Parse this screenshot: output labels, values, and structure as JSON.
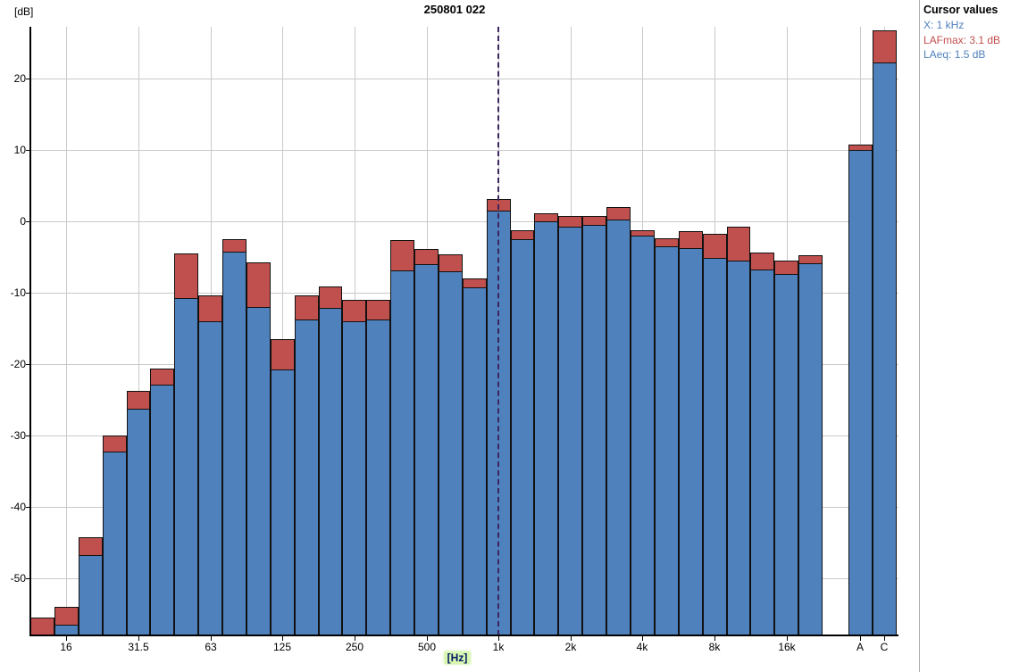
{
  "title": "250801 022",
  "colors": {
    "laeq_fill": "#4F81BD",
    "lafmax_fill": "#C0504D",
    "bar_border": "#111111",
    "gridline": "#C9C9C9",
    "axis": "#000000",
    "cursor_line": "#3B2660",
    "panel_blue": "#4F81BD",
    "panel_red": "#C0504D"
  },
  "y_axis": {
    "unit_label": "[dB]",
    "tick_values": [
      20,
      10,
      0,
      -10,
      -20,
      -30,
      -40,
      -50
    ],
    "min": -58,
    "max": 27.25
  },
  "x_axis": {
    "unit_label": "[Hz]",
    "labeled_ticks": [
      "16",
      "31.5",
      "63",
      "125",
      "250",
      "500",
      "1k",
      "2k",
      "4k",
      "8k",
      "16k"
    ],
    "broadband_labels": [
      "A",
      "C"
    ]
  },
  "chart_data": {
    "type": "bar",
    "title": "250801 022",
    "xlabel": "[Hz]",
    "ylabel": "[dB]",
    "ylim": [
      -58,
      27.25
    ],
    "grid": true,
    "categories": [
      "12.5",
      "16",
      "20",
      "25",
      "31.5",
      "40",
      "50",
      "63",
      "80",
      "100",
      "125",
      "160",
      "200",
      "250",
      "315",
      "400",
      "500",
      "630",
      "800",
      "1k",
      "1.25k",
      "1.6k",
      "2k",
      "2.5k",
      "3.15k",
      "4k",
      "5k",
      "6.3k",
      "8k",
      "10k",
      "12.5k",
      "16k",
      "20k"
    ],
    "labeled_tick_indices": [
      1,
      4,
      7,
      10,
      13,
      16,
      19,
      22,
      25,
      28,
      31
    ],
    "series": [
      {
        "name": "LAFmax",
        "color": "#C0504D",
        "values": [
          -55.5,
          -54.0,
          -44.2,
          -30.0,
          -23.8,
          -20.6,
          -4.5,
          -10.4,
          -2.5,
          -5.8,
          -16.5,
          -10.4,
          -9.1,
          -11.0,
          -11.0,
          -2.6,
          -3.9,
          -4.6,
          -8.0,
          3.1,
          -1.2,
          1.1,
          0.7,
          0.7,
          2.0,
          -1.2,
          -2.4,
          -1.4,
          -1.8,
          -0.8,
          -4.4,
          -5.5,
          -4.8
        ]
      },
      {
        "name": "LAeq",
        "color": "#4F81BD",
        "values": [
          -58.0,
          -56.5,
          -46.7,
          -32.3,
          -26.2,
          -22.9,
          -10.7,
          -14.0,
          -4.2,
          -12.0,
          -20.7,
          -13.8,
          -12.1,
          -14.0,
          -13.8,
          -6.9,
          -6.0,
          -7.0,
          -9.2,
          1.5,
          -2.5,
          0.0,
          -0.7,
          -0.5,
          0.3,
          -2.0,
          -3.5,
          -3.7,
          -5.1,
          -5.5,
          -6.8,
          -7.4,
          -5.9
        ]
      }
    ],
    "broadband": {
      "categories": [
        "A",
        "C"
      ],
      "series": [
        {
          "name": "LAFmax",
          "values": [
            10.7,
            26.8
          ]
        },
        {
          "name": "LAeq",
          "values": [
            10.0,
            22.3
          ]
        }
      ]
    },
    "cursor": {
      "category": "1k",
      "index": 19
    }
  },
  "cursor_panel": {
    "title": "Cursor values",
    "lines": [
      {
        "name": "x",
        "text": "X: 1 kHz",
        "color": "#4F81BD"
      },
      {
        "name": "lafmax",
        "text": "LAFmax: 3.1 dB",
        "color": "#C0504D"
      },
      {
        "name": "laeq",
        "text": "LAeq: 1.5 dB",
        "color": "#4F81BD"
      }
    ]
  }
}
